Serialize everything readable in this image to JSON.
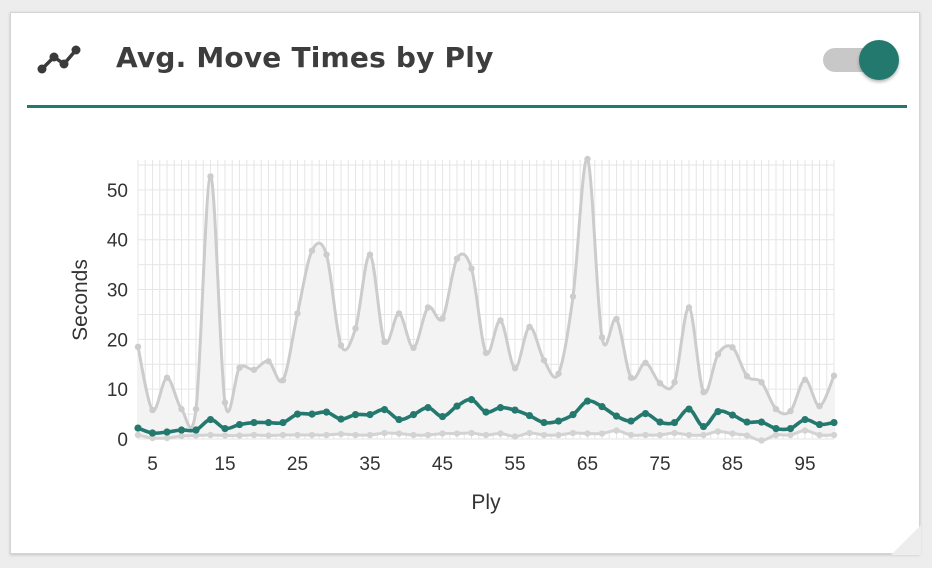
{
  "card": {
    "title": "Avg. Move Times by Ply",
    "icon": "line-chart-icon",
    "toggle_on": true
  },
  "colors": {
    "accent": "#24796e",
    "upper_series": "#cccccc",
    "lower_series": "#d3d3d3",
    "band_fill": "#f3f3f3",
    "grid": "#e6e6e6"
  },
  "chart_data": {
    "type": "line",
    "title": "",
    "xlabel": "Ply",
    "ylabel": "Seconds",
    "xlim": [
      3,
      99
    ],
    "ylim": [
      0,
      56
    ],
    "xticks": [
      5,
      15,
      25,
      35,
      45,
      55,
      65,
      75,
      85,
      95
    ],
    "yticks": [
      0,
      10,
      20,
      30,
      40,
      50
    ],
    "grid": true,
    "legend": "none",
    "x": [
      3,
      5,
      7,
      9,
      11,
      13,
      15,
      17,
      19,
      21,
      23,
      25,
      27,
      29,
      31,
      33,
      35,
      37,
      39,
      41,
      43,
      45,
      47,
      49,
      51,
      53,
      55,
      57,
      59,
      61,
      63,
      65,
      67,
      69,
      71,
      73,
      75,
      77,
      79,
      81,
      83,
      85,
      87,
      89,
      91,
      93,
      95,
      97,
      99
    ],
    "series": [
      {
        "color": "#cccccc",
        "values": [
          18.5,
          5.8,
          12.3,
          6.0,
          6.0,
          52.7,
          7.3,
          14.3,
          13.9,
          15.6,
          11.8,
          25.2,
          37.8,
          37.0,
          18.8,
          22.2,
          37.0,
          19.5,
          25.2,
          18.3,
          26.4,
          24.2,
          36.2,
          34.2,
          17.3,
          23.8,
          14.2,
          22.5,
          15.8,
          13.1,
          28.6,
          56.2,
          20.4,
          24.1,
          12.3,
          15.3,
          11.2,
          11.4,
          26.4,
          9.4,
          17.0,
          18.4,
          12.6,
          11.4,
          6.0,
          5.6,
          11.9,
          6.6,
          12.7
        ]
      },
      {
        "color": "#24796e",
        "values": [
          2.2,
          1.2,
          1.4,
          1.8,
          1.8,
          3.9,
          2.1,
          2.9,
          3.3,
          3.3,
          3.3,
          5.0,
          5.0,
          5.4,
          4.0,
          4.9,
          4.9,
          5.9,
          3.9,
          4.9,
          6.3,
          4.5,
          6.6,
          7.9,
          5.4,
          6.3,
          5.8,
          4.7,
          3.3,
          3.6,
          4.9,
          7.6,
          6.5,
          4.6,
          3.6,
          5.1,
          3.4,
          3.3,
          6.0,
          2.5,
          5.5,
          4.8,
          3.4,
          3.4,
          2.1,
          2.1,
          3.9,
          2.9,
          3.3
        ]
      },
      {
        "color": "#d3d3d3",
        "values": [
          0.8,
          0.2,
          0.2,
          0.6,
          0.7,
          0.8,
          0.7,
          0.7,
          0.8,
          0.7,
          0.8,
          0.8,
          0.8,
          0.8,
          1.0,
          0.8,
          0.8,
          1.2,
          1.1,
          0.8,
          0.8,
          1.1,
          1.1,
          1.2,
          0.8,
          1.1,
          0.5,
          1.2,
          0.8,
          0.8,
          1.2,
          1.1,
          1.1,
          1.7,
          0.8,
          0.8,
          0.8,
          1.2,
          0.8,
          0.8,
          1.5,
          1.1,
          0.7,
          -0.3,
          0.8,
          0.8,
          1.7,
          0.8,
          0.8
        ]
      }
    ]
  }
}
